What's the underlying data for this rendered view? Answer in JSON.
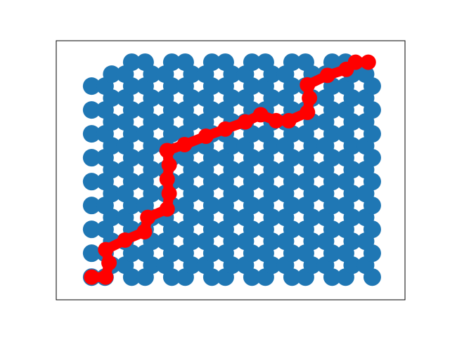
{
  "chart_data": {
    "type": "scatter",
    "xlim": [
      -5.3,
      46.9
    ],
    "ylim": [
      -1.9,
      19.8
    ],
    "series": [
      {
        "color": "#1f77b4",
        "x": [
          0,
          2,
          6,
          8,
          12,
          14,
          18,
          20,
          24,
          26,
          30,
          32,
          36,
          38,
          42
        ],
        "values": [
          0,
          0,
          0,
          0,
          0,
          0,
          0,
          0,
          0,
          0,
          0,
          0,
          0,
          0,
          0
        ]
      },
      {
        "color": "#1f77b4",
        "x": [
          3,
          5,
          9,
          11,
          15,
          17,
          21,
          23,
          27,
          29,
          33,
          35,
          39,
          41
        ],
        "values": [
          1,
          1,
          1,
          1,
          1,
          1,
          1,
          1,
          1,
          1,
          1,
          1,
          1,
          1
        ]
      },
      {
        "color": "#1f77b4",
        "x": [
          0,
          2,
          6,
          8,
          12,
          14,
          18,
          20,
          24,
          26,
          30,
          32,
          36,
          38,
          42
        ],
        "values": [
          2,
          2,
          2,
          2,
          2,
          2,
          2,
          2,
          2,
          2,
          2,
          2,
          2,
          2,
          2
        ]
      },
      {
        "color": "#1f77b4",
        "x": [
          3,
          5,
          9,
          11,
          15,
          17,
          21,
          23,
          27,
          29,
          33,
          35,
          39,
          41
        ],
        "values": [
          3,
          3,
          3,
          3,
          3,
          3,
          3,
          3,
          3,
          3,
          3,
          3,
          3,
          3
        ]
      },
      {
        "color": "#1f77b4",
        "x": [
          0,
          2,
          6,
          8,
          12,
          14,
          18,
          20,
          24,
          26,
          30,
          32,
          36,
          38,
          42
        ],
        "values": [
          4,
          4,
          4,
          4,
          4,
          4,
          4,
          4,
          4,
          4,
          4,
          4,
          4,
          4,
          4
        ]
      },
      {
        "color": "#1f77b4",
        "x": [
          3,
          5,
          9,
          11,
          15,
          17,
          21,
          23,
          27,
          29,
          33,
          35,
          39,
          41
        ],
        "values": [
          5,
          5,
          5,
          5,
          5,
          5,
          5,
          5,
          5,
          5,
          5,
          5,
          5,
          5
        ]
      },
      {
        "color": "#1f77b4",
        "x": [
          0,
          2,
          6,
          8,
          12,
          14,
          18,
          20,
          24,
          26,
          30,
          32,
          36,
          38,
          42
        ],
        "values": [
          6,
          6,
          6,
          6,
          6,
          6,
          6,
          6,
          6,
          6,
          6,
          6,
          6,
          6,
          6
        ]
      },
      {
        "color": "#1f77b4",
        "x": [
          3,
          5,
          9,
          11,
          15,
          17,
          21,
          23,
          27,
          29,
          33,
          35,
          39,
          41
        ],
        "values": [
          7,
          7,
          7,
          7,
          7,
          7,
          7,
          7,
          7,
          7,
          7,
          7,
          7,
          7
        ]
      },
      {
        "color": "#1f77b4",
        "x": [
          0,
          2,
          6,
          8,
          12,
          14,
          18,
          20,
          24,
          26,
          30,
          32,
          36,
          38,
          42
        ],
        "values": [
          8,
          8,
          8,
          8,
          8,
          8,
          8,
          8,
          8,
          8,
          8,
          8,
          8,
          8,
          8
        ]
      },
      {
        "color": "#1f77b4",
        "x": [
          3,
          5,
          9,
          11,
          15,
          17,
          21,
          23,
          27,
          29,
          33,
          35,
          39,
          41
        ],
        "values": [
          9,
          9,
          9,
          9,
          9,
          9,
          9,
          9,
          9,
          9,
          9,
          9,
          9,
          9
        ]
      },
      {
        "color": "#1f77b4",
        "x": [
          0,
          2,
          6,
          8,
          12,
          14,
          18,
          20,
          24,
          26,
          30,
          32,
          36,
          38,
          42
        ],
        "values": [
          10,
          10,
          10,
          10,
          10,
          10,
          10,
          10,
          10,
          10,
          10,
          10,
          10,
          10,
          10
        ]
      },
      {
        "color": "#1f77b4",
        "x": [
          3,
          5,
          9,
          11,
          15,
          17,
          21,
          23,
          27,
          29,
          33,
          35,
          39,
          41
        ],
        "values": [
          11,
          11,
          11,
          11,
          11,
          11,
          11,
          11,
          11,
          11,
          11,
          11,
          11,
          11
        ]
      },
      {
        "color": "#1f77b4",
        "x": [
          0,
          2,
          6,
          8,
          12,
          14,
          18,
          20,
          24,
          26,
          30,
          32,
          36,
          38,
          42
        ],
        "values": [
          12,
          12,
          12,
          12,
          12,
          12,
          12,
          12,
          12,
          12,
          12,
          12,
          12,
          12,
          12
        ]
      },
      {
        "color": "#1f77b4",
        "x": [
          3,
          5,
          9,
          11,
          15,
          17,
          21,
          23,
          27,
          29,
          33,
          35,
          39,
          41
        ],
        "values": [
          13,
          13,
          13,
          13,
          13,
          13,
          13,
          13,
          13,
          13,
          13,
          13,
          13,
          13
        ]
      },
      {
        "color": "#1f77b4",
        "x": [
          0,
          2,
          6,
          8,
          12,
          14,
          18,
          20,
          24,
          26,
          30,
          32,
          36,
          38,
          42
        ],
        "values": [
          14,
          14,
          14,
          14,
          14,
          14,
          14,
          14,
          14,
          14,
          14,
          14,
          14,
          14,
          14
        ]
      },
      {
        "color": "#1f77b4",
        "x": [
          3,
          5,
          9,
          11,
          15,
          17,
          21,
          23,
          27,
          29,
          33,
          35,
          39,
          41
        ],
        "values": [
          15,
          15,
          15,
          15,
          15,
          15,
          15,
          15,
          15,
          15,
          15,
          15,
          15,
          15
        ]
      },
      {
        "color": "#1f77b4",
        "x": [
          0,
          2,
          6,
          8,
          12,
          14,
          18,
          20,
          24,
          26,
          30,
          32,
          36,
          38,
          42
        ],
        "values": [
          16,
          16,
          16,
          16,
          16,
          16,
          16,
          16,
          16,
          16,
          16,
          16,
          16,
          16,
          16
        ]
      },
      {
        "color": "#1f77b4",
        "x": [
          3,
          5,
          9,
          11,
          15,
          17,
          21,
          23,
          27,
          29,
          33,
          35,
          39,
          41
        ],
        "values": [
          17,
          17,
          17,
          17,
          17,
          17,
          17,
          17,
          17,
          17,
          17,
          17,
          17,
          17
        ]
      },
      {
        "color": "#1f77b4",
        "x": [
          6,
          8,
          12,
          14,
          18,
          20,
          24,
          26,
          30,
          32,
          36,
          38
        ],
        "values": [
          18,
          18,
          18,
          18,
          18,
          18,
          18,
          18,
          18,
          18,
          18,
          18
        ]
      }
    ],
    "path": {
      "color": "#ff0000",
      "x": [
        0,
        2.1,
        2.6,
        2.1,
        5,
        7.9,
        8.4,
        11.3,
        11.6,
        11.3,
        11.6,
        11.3,
        13.9,
        17.1,
        20,
        23,
        25.3,
        27.6,
        29.5,
        32.3,
        32.6,
        32.3,
        35.3,
        38.1,
        39.5,
        41.4
      ],
      "values": [
        0,
        0,
        1.2,
        2.3,
        3.1,
        3.8,
        5,
        5.7,
        7,
        8.2,
        9.4,
        10.6,
        11.1,
        11.8,
        12.4,
        13,
        13.6,
        13.1,
        13.1,
        13.8,
        15,
        16.1,
        16.9,
        17.4,
        18,
        18
      ]
    }
  }
}
